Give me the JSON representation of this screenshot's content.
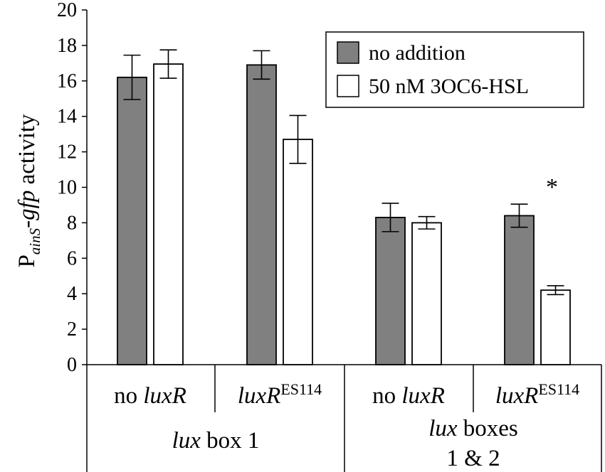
{
  "chart_data": {
    "type": "bar",
    "title": "",
    "ylabel": {
      "prefix": "P",
      "subscript": "ainS",
      "dash": "-",
      "italic_part": "gfp",
      "suffix": " activity"
    },
    "ylim": [
      0,
      20
    ],
    "yticks": [
      "0",
      "2",
      "4",
      "6",
      "8",
      "10",
      "12",
      "14",
      "16",
      "18",
      "20"
    ],
    "grid": false,
    "legend_position": "top-right",
    "categories": [
      {
        "prefix": "no ",
        "italic": "luxR",
        "sup": ""
      },
      {
        "prefix": "",
        "italic": "luxR",
        "sup": "ES114"
      },
      {
        "prefix": "no ",
        "italic": "luxR",
        "sup": ""
      },
      {
        "prefix": "",
        "italic": "luxR",
        "sup": "ES114"
      }
    ],
    "groups": [
      {
        "italic": "lux",
        "rest": " box 1",
        "line2": "",
        "span": [
          0,
          1
        ]
      },
      {
        "italic": "lux",
        "rest": " boxes",
        "line2": "1 & 2",
        "span": [
          2,
          3
        ]
      }
    ],
    "series": [
      {
        "name": "no addition",
        "color": "#808080",
        "values": [
          16.2,
          16.9,
          8.3,
          8.4
        ],
        "errors": [
          1.25,
          0.8,
          0.8,
          0.65
        ]
      },
      {
        "name": "50 nM 3OC6-HSL",
        "color": "#ffffff",
        "values": [
          16.95,
          12.7,
          8.0,
          4.2
        ],
        "errors": [
          0.8,
          1.35,
          0.35,
          0.25
        ]
      }
    ],
    "annotations": [
      {
        "text": "*",
        "category": 3,
        "series": 1
      }
    ]
  }
}
